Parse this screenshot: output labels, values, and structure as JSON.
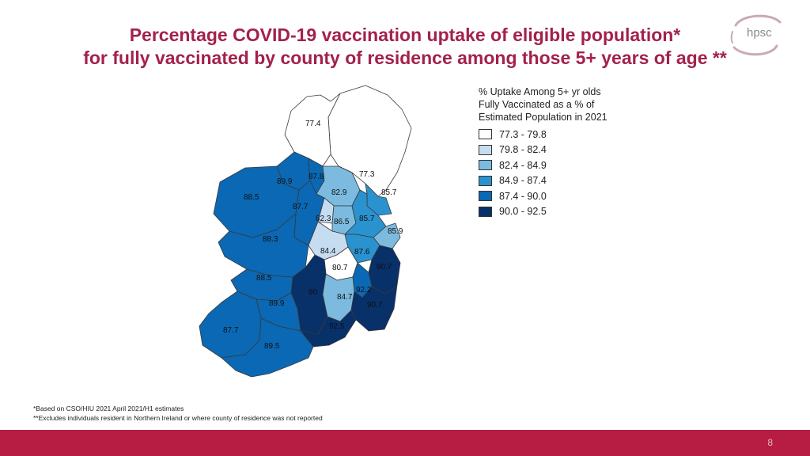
{
  "title": {
    "line1": "Percentage COVID-19 vaccination uptake of eligible population*",
    "line2": "for fully vaccinated by county of residence among those 5+ years of age **"
  },
  "logo": {
    "text": "hpsc",
    "ring_color": "#c9a9b4"
  },
  "legend": {
    "title_line1": "% Uptake Among 5+ yr olds",
    "title_line2": "Fully Vaccinated as a % of",
    "title_line3": "Estimated Population in 2021",
    "classes": [
      {
        "label": "77.3 - 79.8",
        "color": "#ffffff"
      },
      {
        "label": "79.8 - 82.4",
        "color": "#c6dcf0"
      },
      {
        "label": "82.4 - 84.9",
        "color": "#7cbbdf"
      },
      {
        "label": "84.9 - 87.4",
        "color": "#2a92cf"
      },
      {
        "label": "87.4 - 90.0",
        "color": "#0a68b4"
      },
      {
        "label": "90.0 - 92.5",
        "color": "#083069"
      }
    ]
  },
  "map_labels": [
    "77.4",
    "77.3",
    "87.8",
    "89.9",
    "88.5",
    "82.9",
    "85.7",
    "87.7",
    "82.3",
    "86.5",
    "85.7",
    "85.9",
    "88.3",
    "84.4",
    "87.6",
    "80.7",
    "90.7",
    "88.5",
    "90",
    "92.2",
    "84.7",
    "89.9",
    "90.7",
    "92.5",
    "87.7",
    "89.5"
  ],
  "notes": {
    "line1": "*Based on CSO/HIU 2021 April 2021/H1 estimates",
    "line2": "**Excludes individuals resident in Northern Ireland or where county of residence was not reported"
  },
  "footer": {
    "page_number": "8",
    "bar_color": "#b71c43"
  }
}
